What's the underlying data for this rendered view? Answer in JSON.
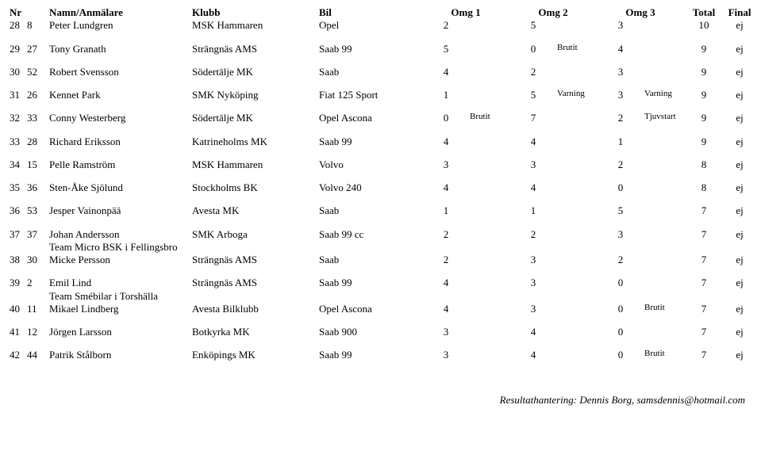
{
  "headers": {
    "nr": "Nr",
    "name": "Namn/Anmälare",
    "club": "Klubb",
    "car": "Bil",
    "omg1": "Omg 1",
    "omg2": "Omg 2",
    "omg3": "Omg 3",
    "total": "Total",
    "final": "Final"
  },
  "footer": "Resultathantering: Dennis Borg, samsdennis@hotmail.com",
  "rows": [
    {
      "type": "row",
      "pos": "28",
      "num": "8",
      "name": "Peter Lundgren",
      "club": "MSK Hammaren",
      "car": "Opel",
      "o1": "2",
      "n1": "",
      "o2": "5",
      "n2": "",
      "o3": "3",
      "n3": "",
      "tot": "10",
      "fin": "ej"
    },
    {
      "type": "spacer"
    },
    {
      "type": "row",
      "pos": "29",
      "num": "27",
      "name": "Tony Granath",
      "club": "Strängnäs AMS",
      "car": "Saab 99",
      "o1": "5",
      "n1": "",
      "o2": "0",
      "n2": "Brutit",
      "o3": "4",
      "n3": "",
      "tot": "9",
      "fin": "ej"
    },
    {
      "type": "spacer"
    },
    {
      "type": "row",
      "pos": "30",
      "num": "52",
      "name": "Robert Svensson",
      "club": "Södertälje MK",
      "car": "Saab",
      "o1": "4",
      "n1": "",
      "o2": "2",
      "n2": "",
      "o3": "3",
      "n3": "",
      "tot": "9",
      "fin": "ej"
    },
    {
      "type": "spacer"
    },
    {
      "type": "row",
      "pos": "31",
      "num": "26",
      "name": "Kennet Park",
      "club": "SMK Nyköping",
      "car": "Fiat 125 Sport",
      "o1": "1",
      "n1": "",
      "o2": "5",
      "n2": "Varning",
      "o3": "3",
      "n3": "Varning",
      "tot": "9",
      "fin": "ej"
    },
    {
      "type": "spacer"
    },
    {
      "type": "row",
      "pos": "32",
      "num": "33",
      "name": "Conny Westerberg",
      "club": "Södertälje MK",
      "car": "Opel Ascona",
      "o1": "0",
      "n1": "Brutit",
      "o2": "7",
      "n2": "",
      "o3": "2",
      "n3": "Tjuvstart",
      "tot": "9",
      "fin": "ej"
    },
    {
      "type": "spacer"
    },
    {
      "type": "row",
      "pos": "33",
      "num": "28",
      "name": "Richard Eriksson",
      "club": "Katrineholms MK",
      "car": "Saab 99",
      "o1": "4",
      "n1": "",
      "o2": "4",
      "n2": "",
      "o3": "1",
      "n3": "",
      "tot": "9",
      "fin": "ej"
    },
    {
      "type": "spacer"
    },
    {
      "type": "row",
      "pos": "34",
      "num": "15",
      "name": "Pelle Ramström",
      "club": "MSK Hammaren",
      "car": "Volvo",
      "o1": "3",
      "n1": "",
      "o2": "3",
      "n2": "",
      "o3": "2",
      "n3": "",
      "tot": "8",
      "fin": "ej"
    },
    {
      "type": "spacer"
    },
    {
      "type": "row",
      "pos": "35",
      "num": "36",
      "name": "Sten-Åke Sjölund",
      "club": "Stockholms BK",
      "car": "Volvo 240",
      "o1": "4",
      "n1": "",
      "o2": "4",
      "n2": "",
      "o3": "0",
      "n3": "",
      "tot": "8",
      "fin": "ej"
    },
    {
      "type": "spacer"
    },
    {
      "type": "row",
      "pos": "36",
      "num": "53",
      "name": "Jesper Vainonpää",
      "club": "Avesta MK",
      "car": "Saab",
      "o1": "1",
      "n1": "",
      "o2": "1",
      "n2": "",
      "o3": "5",
      "n3": "",
      "tot": "7",
      "fin": "ej"
    },
    {
      "type": "spacer"
    },
    {
      "type": "row",
      "pos": "37",
      "num": "37",
      "name": "Johan Andersson",
      "club": "SMK Arboga",
      "car": "Saab 99 cc",
      "o1": "2",
      "n1": "",
      "o2": "2",
      "n2": "",
      "o3": "3",
      "n3": "",
      "tot": "7",
      "fin": "ej"
    },
    {
      "type": "sub",
      "name": "Team Micro BSK i Fellingsbro"
    },
    {
      "type": "row",
      "pos": "38",
      "num": "30",
      "name": "Micke Persson",
      "club": "Strängnäs AMS",
      "car": "Saab",
      "o1": "2",
      "n1": "",
      "o2": "3",
      "n2": "",
      "o3": "2",
      "n3": "",
      "tot": "7",
      "fin": "ej"
    },
    {
      "type": "spacer"
    },
    {
      "type": "row",
      "pos": "39",
      "num": "2",
      "name": "Emil Lind",
      "club": "Strängnäs AMS",
      "car": "Saab 99",
      "o1": "4",
      "n1": "",
      "o2": "3",
      "n2": "",
      "o3": "0",
      "n3": "",
      "tot": "7",
      "fin": "ej"
    },
    {
      "type": "sub",
      "name": "Team Smébilar i Torshälla"
    },
    {
      "type": "row",
      "pos": "40",
      "num": "11",
      "name": "Mikael Lindberg",
      "club": "Avesta Bilklubb",
      "car": "Opel Ascona",
      "o1": "4",
      "n1": "",
      "o2": "3",
      "n2": "",
      "o3": "0",
      "n3": "Brutit",
      "tot": "7",
      "fin": "ej"
    },
    {
      "type": "spacer"
    },
    {
      "type": "row",
      "pos": "41",
      "num": "12",
      "name": "Jörgen Larsson",
      "club": "Botkyrka MK",
      "car": "Saab 900",
      "o1": "3",
      "n1": "",
      "o2": "4",
      "n2": "",
      "o3": "0",
      "n3": "",
      "tot": "7",
      "fin": "ej"
    },
    {
      "type": "spacer"
    },
    {
      "type": "row",
      "pos": "42",
      "num": "44",
      "name": "Patrik Stålborn",
      "club": "Enköpings MK",
      "car": "Saab 99",
      "o1": "3",
      "n1": "",
      "o2": "4",
      "n2": "",
      "o3": "0",
      "n3": "Brutit",
      "tot": "7",
      "fin": "ej"
    }
  ]
}
